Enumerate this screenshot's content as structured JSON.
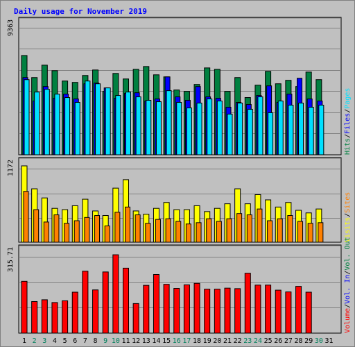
{
  "title": "Daily usage for November 2019",
  "colors": {
    "hits": "#008040",
    "files": "#0000ff",
    "pages": "#00e0ff",
    "visits": "#ffff00",
    "sites": "#ff8000",
    "volume": "#ff0000",
    "grid": "#808080",
    "weekend_day": "#00805c",
    "weekday_day": "#000000",
    "plot_bg": "#c0c0c0"
  },
  "chart_data": [
    {
      "type": "bar",
      "name": "hits-files-pages",
      "ymax_label": "9363",
      "ymax": 9363,
      "legend": [
        "Hits",
        "/",
        "Files",
        "/",
        "Pages"
      ],
      "series": [
        {
          "name": "Hits",
          "values": [
            7200,
            5600,
            6500,
            6100,
            5350,
            5250,
            5750,
            6150,
            4600,
            5900,
            5500,
            6200,
            6400,
            5800,
            5650,
            4700,
            4600,
            5100,
            6300,
            6200,
            4600,
            5600,
            4150,
            5050,
            6050,
            5150,
            5400,
            4950,
            6000,
            5450
          ]
        },
        {
          "name": "Files",
          "values": [
            5600,
            3900,
            4950,
            4100,
            4400,
            4050,
            5150,
            5200,
            4850,
            4100,
            4450,
            4500,
            3900,
            4050,
            5650,
            4200,
            3950,
            4950,
            4200,
            4100,
            3450,
            3800,
            3650,
            4300,
            5000,
            3800,
            4400,
            5550,
            4050,
            3900
          ]
        },
        {
          "name": "Pages",
          "values": [
            5450,
            4550,
            4750,
            4400,
            4150,
            3800,
            5350,
            5150,
            4850,
            4300,
            4550,
            4200,
            3950,
            3850,
            4650,
            3800,
            3400,
            3750,
            4050,
            3900,
            2950,
            3750,
            3300,
            4200,
            3050,
            3900,
            3600,
            3750,
            3450,
            3600
          ]
        }
      ]
    },
    {
      "type": "bar",
      "name": "visits-sites",
      "ymax_label": "1172",
      "ymax": 1172,
      "legend": [
        "Visits",
        "/",
        "Sites"
      ],
      "series": [
        {
          "name": "Visits",
          "values": [
            1172,
            820,
            680,
            520,
            500,
            560,
            660,
            480,
            410,
            830,
            960,
            480,
            430,
            520,
            610,
            500,
            500,
            560,
            470,
            520,
            590,
            820,
            590,
            730,
            650,
            540,
            610,
            490,
            450,
            510
          ]
        },
        {
          "name": "Sites",
          "values": [
            780,
            500,
            310,
            420,
            290,
            330,
            380,
            410,
            250,
            460,
            540,
            420,
            290,
            350,
            360,
            320,
            280,
            300,
            360,
            320,
            360,
            440,
            420,
            510,
            330,
            360,
            410,
            320,
            290,
            300
          ]
        }
      ]
    },
    {
      "type": "bar",
      "name": "volume",
      "ymax_label": "315.71",
      "ymax": 315.71,
      "legend": [
        "Volume",
        "/",
        "Vol. In",
        "/",
        "Vol. Out"
      ],
      "series": [
        {
          "name": "Volume",
          "values": [
            205,
            125,
            132,
            121,
            128,
            162,
            245,
            171,
            242,
            310,
            257,
            117,
            189,
            232,
            193,
            177,
            191,
            197,
            174,
            174,
            178,
            176,
            237,
            190,
            190,
            170,
            163,
            185,
            162,
            0
          ]
        }
      ]
    }
  ],
  "days": [
    "1",
    "2",
    "3",
    "4",
    "5",
    "6",
    "7",
    "8",
    "9",
    "10",
    "11",
    "12",
    "13",
    "14",
    "15",
    "16",
    "17",
    "18",
    "19",
    "20",
    "21",
    "22",
    "23",
    "24",
    "25",
    "26",
    "27",
    "28",
    "29",
    "30",
    "31"
  ],
  "weekend_days": [
    "2",
    "3",
    "9",
    "10",
    "16",
    "17",
    "23",
    "24",
    "30"
  ]
}
